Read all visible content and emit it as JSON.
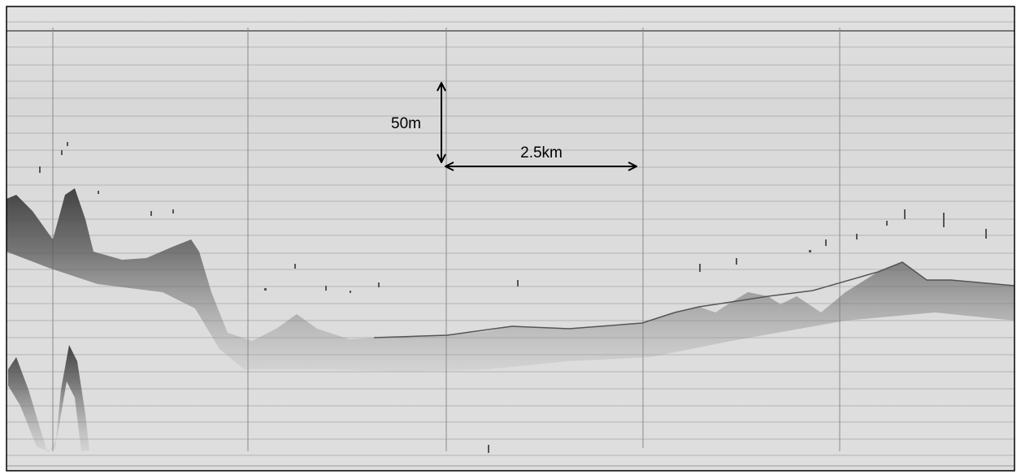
{
  "annotations": {
    "vertical_scale": "50m",
    "horizontal_scale": "2.5km"
  }
}
